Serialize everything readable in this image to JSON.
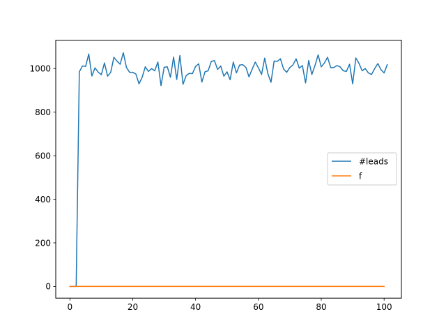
{
  "chart_data": {
    "type": "line",
    "title": "",
    "xlabel": "",
    "ylabel": "",
    "xlim": [
      -4.5,
      105.5
    ],
    "ylim": [
      -53.8,
      1130.3
    ],
    "xticks": [
      0,
      20,
      40,
      60,
      80,
      100
    ],
    "yticks": [
      0,
      200,
      400,
      600,
      800,
      1000
    ],
    "grid": false,
    "legend_position": "center-right",
    "series": [
      {
        "name": "#leads",
        "color": "#1f77b4",
        "x": [
          0,
          1,
          2,
          3,
          4,
          5,
          6,
          7,
          8,
          9,
          10,
          11,
          12,
          13,
          14,
          15,
          16,
          17,
          18,
          19,
          20,
          21,
          22,
          23,
          24,
          25,
          26,
          27,
          28,
          29,
          30,
          31,
          32,
          33,
          34,
          35,
          36,
          37,
          38,
          39,
          40,
          41,
          42,
          43,
          44,
          45,
          46,
          47,
          48,
          49,
          50,
          51,
          52,
          53,
          54,
          55,
          56,
          57,
          58,
          59,
          60,
          61,
          62,
          63,
          64,
          65,
          66,
          67,
          68,
          69,
          70,
          71,
          72,
          73,
          74,
          75,
          76,
          77,
          78,
          79,
          80,
          81,
          82,
          83,
          84,
          85,
          86,
          87,
          88,
          89,
          90,
          91,
          92,
          93,
          94,
          95,
          96,
          97,
          98,
          99,
          100,
          101
        ],
        "values": [
          0,
          0,
          0,
          985,
          1012,
          1010,
          1067,
          966,
          1003,
          984,
          972,
          1026,
          965,
          983,
          1052,
          1034,
          1020,
          1073,
          1005,
          983,
          983,
          975,
          930,
          960,
          1008,
          987,
          1000,
          990,
          1030,
          922,
          1006,
          1008,
          960,
          1053,
          950,
          1060,
          928,
          968,
          978,
          977,
          1010,
          1022,
          938,
          985,
          990,
          1033,
          1037,
          996,
          1012,
          965,
          985,
          949,
          1030,
          980,
          1016,
          1018,
          1006,
          962,
          997,
          1030,
          1003,
          973,
          1048,
          977,
          937,
          1035,
          1033,
          1045,
          998,
          983,
          1005,
          1017,
          1045,
          1002,
          1014,
          934,
          1037,
          973,
          1014,
          1063,
          1008,
          1026,
          1052,
          1004,
          1005,
          1014,
          1008,
          990,
          987,
          1020,
          930,
          1049,
          1024,
          990,
          1000,
          980,
          973,
          1000,
          1023,
          995,
          980,
          1018
        ]
      },
      {
        "name": "f",
        "color": "#ff7f0e",
        "x": [
          0,
          100
        ],
        "values": [
          0,
          0
        ]
      }
    ]
  }
}
